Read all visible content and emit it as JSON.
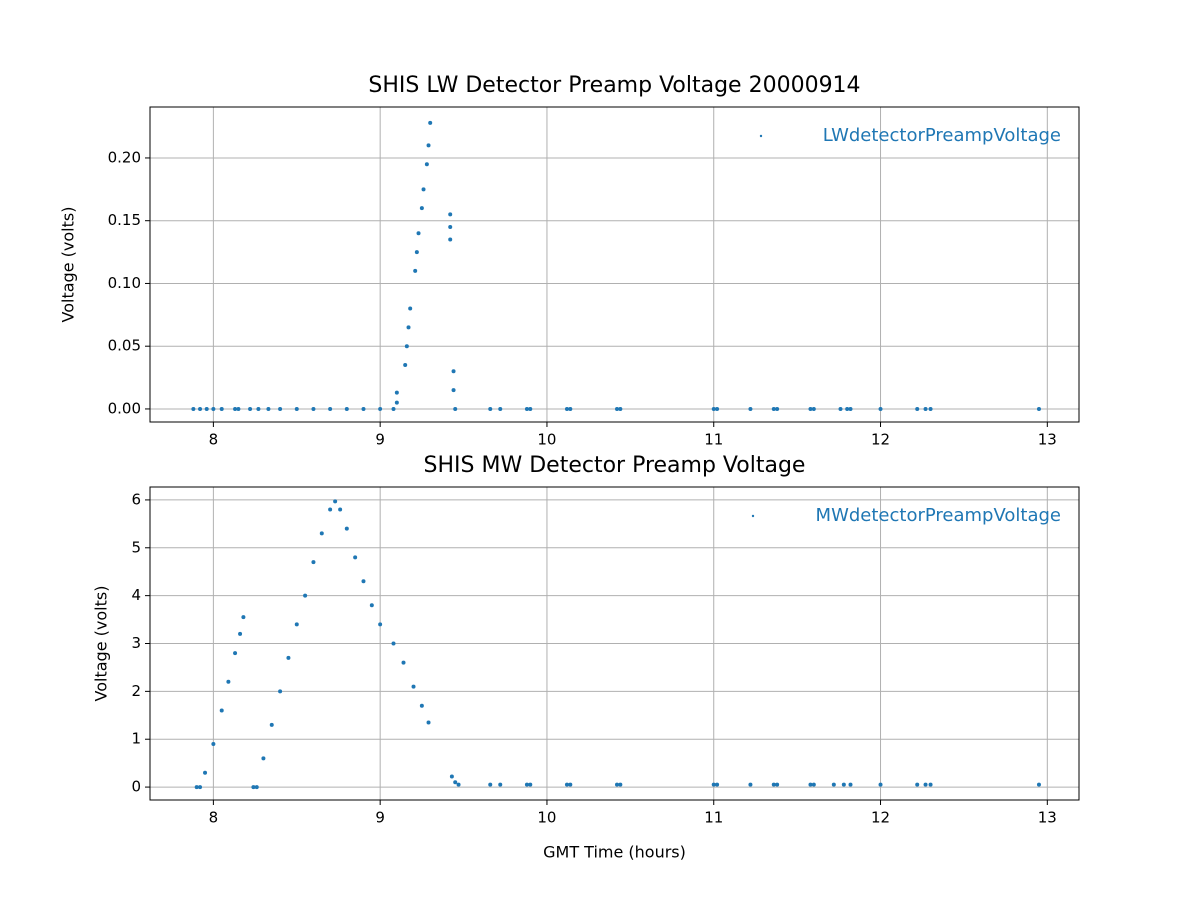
{
  "chart_data": [
    {
      "type": "scatter",
      "title": "SHIS LW Detector Preamp Voltage 20000914",
      "y_label": "Voltage (volts)",
      "x": [
        7.88,
        7.92,
        7.96,
        8.0,
        8.05,
        8.13,
        8.15,
        8.22,
        8.27,
        8.33,
        8.4,
        8.5,
        8.6,
        8.7,
        8.8,
        8.9,
        9.0,
        9.08,
        9.1,
        9.1,
        9.15,
        9.16,
        9.17,
        9.18,
        9.21,
        9.22,
        9.23,
        9.25,
        9.26,
        9.28,
        9.29,
        9.3,
        9.42,
        9.42,
        9.42,
        9.44,
        9.44,
        9.45,
        9.66,
        9.72,
        9.88,
        9.9,
        10.12,
        10.14,
        10.42,
        10.44,
        11.0,
        11.02,
        11.22,
        11.36,
        11.38,
        11.58,
        11.6,
        11.76,
        11.8,
        11.82,
        12.0,
        12.22,
        12.27,
        12.3,
        12.95
      ],
      "series": [
        {
          "name": "LWdetectorPreampVoltage",
          "color": "#1f77b4",
          "values": [
            0,
            0,
            0,
            0,
            0,
            0,
            0,
            0,
            0,
            0,
            0,
            0,
            0,
            0,
            0,
            0,
            0,
            0,
            0.005,
            0.013,
            0.035,
            0.05,
            0.065,
            0.08,
            0.11,
            0.125,
            0.14,
            0.16,
            0.175,
            0.195,
            0.21,
            0.228,
            0.155,
            0.145,
            0.135,
            0.03,
            0.015,
            0,
            0,
            0,
            0,
            0,
            0,
            0,
            0,
            0,
            0,
            0,
            0,
            0,
            0,
            0,
            0,
            0,
            0,
            0,
            0,
            0,
            0,
            0,
            0
          ]
        }
      ],
      "xlim": [
        7.62,
        13.19
      ],
      "xticks": [
        8,
        9,
        10,
        11,
        12,
        13
      ],
      "ylim": [
        -0.0104,
        0.2406
      ],
      "yticks": [
        {
          "value": 0,
          "label": "0.00"
        },
        {
          "value": 0.05,
          "label": "0.05"
        },
        {
          "value": 0.1,
          "label": "0.10"
        },
        {
          "value": 0.15,
          "label": "0.15"
        },
        {
          "value": 0.2,
          "label": "0.20"
        }
      ],
      "grid": true,
      "legend": "upper right"
    },
    {
      "type": "scatter",
      "title": "SHIS MW Detector Preamp Voltage",
      "x_label": "GMT Time (hours)",
      "y_label": "Voltage (volts)",
      "x": [
        7.9,
        7.92,
        7.95,
        8.0,
        8.05,
        8.09,
        8.13,
        8.16,
        8.18,
        8.24,
        8.26,
        8.3,
        8.35,
        8.4,
        8.45,
        8.5,
        8.55,
        8.6,
        8.65,
        8.7,
        8.73,
        8.76,
        8.8,
        8.85,
        8.9,
        8.95,
        9.0,
        9.08,
        9.14,
        9.2,
        9.25,
        9.29,
        9.43,
        9.45,
        9.47,
        9.66,
        9.72,
        9.88,
        9.9,
        10.12,
        10.14,
        10.42,
        10.44,
        11.0,
        11.02,
        11.22,
        11.36,
        11.38,
        11.58,
        11.6,
        11.72,
        11.78,
        11.82,
        12.0,
        12.22,
        12.27,
        12.3,
        12.95
      ],
      "series": [
        {
          "name": "MWdetectorPreampVoltage",
          "color": "#1f77b4",
          "values": [
            0,
            0,
            0.3,
            0.9,
            1.6,
            2.2,
            2.8,
            3.2,
            3.55,
            0,
            0,
            0.6,
            1.3,
            2.0,
            2.7,
            3.4,
            4.0,
            4.7,
            5.3,
            5.8,
            5.97,
            5.8,
            5.4,
            4.8,
            4.3,
            3.8,
            3.4,
            3.0,
            2.6,
            2.1,
            1.7,
            1.35,
            0.22,
            0.1,
            0.05,
            0.05,
            0.05,
            0.05,
            0.05,
            0.05,
            0.05,
            0.05,
            0.05,
            0.05,
            0.05,
            0.05,
            0.05,
            0.05,
            0.05,
            0.05,
            0.05,
            0.05,
            0.05,
            0.05,
            0.05,
            0.05,
            0.05,
            0.05
          ]
        }
      ],
      "xlim": [
        7.62,
        13.19
      ],
      "xticks": [
        8,
        9,
        10,
        11,
        12,
        13
      ],
      "ylim": [
        -0.27,
        6.27
      ],
      "yticks": [
        0,
        1,
        2,
        3,
        4,
        5,
        6
      ],
      "grid": true,
      "legend": "upper right"
    }
  ]
}
